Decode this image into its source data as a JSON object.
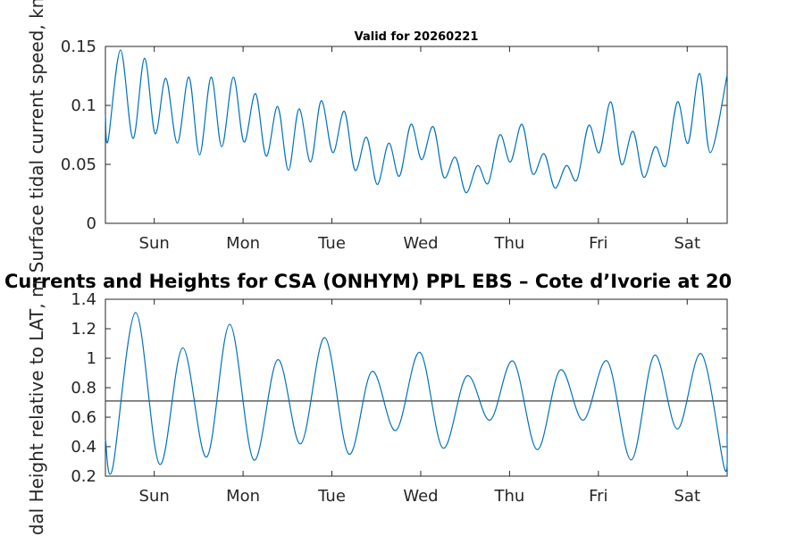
{
  "figure_title": "Currents and Heights for CSA (ONHYM) PPL EBS  – Cote d’Ivorie at 20",
  "colors": {
    "series": "#0072bd",
    "reference_line": "#404040",
    "axis": "#262626"
  },
  "chart_data": [
    {
      "type": "line",
      "title": "Valid for 20260221",
      "xlabel": "",
      "ylabel": "Surface tidal current speed, kn",
      "xlim": [
        0,
        7
      ],
      "ylim": [
        0,
        0.15
      ],
      "yticks": [
        0,
        0.05,
        0.1,
        0.15
      ],
      "ytick_labels": [
        "0",
        "0.05",
        "0.1",
        "0.15"
      ],
      "xticks": [
        0.55,
        1.55,
        2.55,
        3.55,
        4.55,
        5.55,
        6.55
      ],
      "xtick_labels": [
        "Sun",
        "Mon",
        "Tue",
        "Wed",
        "Thu",
        "Fri",
        "Sat"
      ],
      "series": [
        {
          "name": "Surface tidal current speed",
          "x": [
            0,
            0.03,
            0.17,
            0.31,
            0.44,
            0.56,
            0.68,
            0.81,
            0.94,
            1.06,
            1.19,
            1.31,
            1.44,
            1.56,
            1.69,
            1.81,
            1.94,
            2.06,
            2.18,
            2.31,
            2.43,
            2.56,
            2.69,
            2.81,
            2.94,
            3.06,
            3.19,
            3.31,
            3.44,
            3.56,
            3.69,
            3.81,
            3.94,
            4.06,
            4.19,
            4.31,
            4.44,
            4.56,
            4.69,
            4.81,
            4.94,
            5.06,
            5.19,
            5.31,
            5.44,
            5.56,
            5.69,
            5.81,
            5.94,
            6.06,
            6.19,
            6.31,
            6.44,
            6.56,
            6.69,
            6.81,
            7.0
          ],
          "values": [
            0.092,
            0.07,
            0.147,
            0.072,
            0.14,
            0.076,
            0.123,
            0.068,
            0.124,
            0.058,
            0.124,
            0.065,
            0.124,
            0.069,
            0.11,
            0.057,
            0.099,
            0.045,
            0.097,
            0.052,
            0.104,
            0.06,
            0.095,
            0.045,
            0.073,
            0.033,
            0.068,
            0.04,
            0.084,
            0.054,
            0.082,
            0.039,
            0.056,
            0.026,
            0.049,
            0.034,
            0.075,
            0.052,
            0.084,
            0.042,
            0.059,
            0.03,
            0.049,
            0.037,
            0.083,
            0.06,
            0.103,
            0.05,
            0.078,
            0.039,
            0.065,
            0.049,
            0.103,
            0.068,
            0.127,
            0.06,
            0.126
          ]
        }
      ]
    },
    {
      "type": "line",
      "title": "Currents and Heights for CSA (ONHYM) PPL EBS  – Cote d’Ivorie at 20",
      "xlabel": "",
      "ylabel": "Tidal Height relative to LAT, m",
      "xlim": [
        0,
        7
      ],
      "ylim": [
        0.2,
        1.4
      ],
      "yticks": [
        0.2,
        0.4,
        0.6,
        0.8,
        1.0,
        1.2,
        1.4
      ],
      "ytick_labels": [
        "0.2",
        "0.4",
        "0.6",
        "0.8",
        "1",
        "1.2",
        "1.4"
      ],
      "xticks": [
        0.55,
        1.55,
        2.55,
        3.55,
        4.55,
        5.55,
        6.55
      ],
      "xtick_labels": [
        "Sun",
        "Mon",
        "Tue",
        "Wed",
        "Thu",
        "Fri",
        "Sat"
      ],
      "reference_line": 0.71,
      "series": [
        {
          "name": "Tidal height",
          "x": [
            0,
            0.08,
            0.34,
            0.61,
            0.87,
            1.14,
            1.4,
            1.67,
            1.94,
            2.2,
            2.47,
            2.74,
            3.0,
            3.27,
            3.54,
            3.8,
            4.07,
            4.33,
            4.59,
            4.86,
            5.12,
            5.38,
            5.65,
            5.92,
            6.18,
            6.44,
            6.71,
            6.97,
            7.0
          ],
          "values": [
            0.45,
            0.25,
            1.31,
            0.28,
            1.07,
            0.33,
            1.23,
            0.31,
            0.99,
            0.42,
            1.14,
            0.35,
            0.91,
            0.51,
            1.04,
            0.39,
            0.88,
            0.58,
            0.98,
            0.38,
            0.92,
            0.58,
            0.98,
            0.31,
            1.02,
            0.52,
            1.03,
            0.25,
            0.49
          ]
        }
      ]
    }
  ]
}
